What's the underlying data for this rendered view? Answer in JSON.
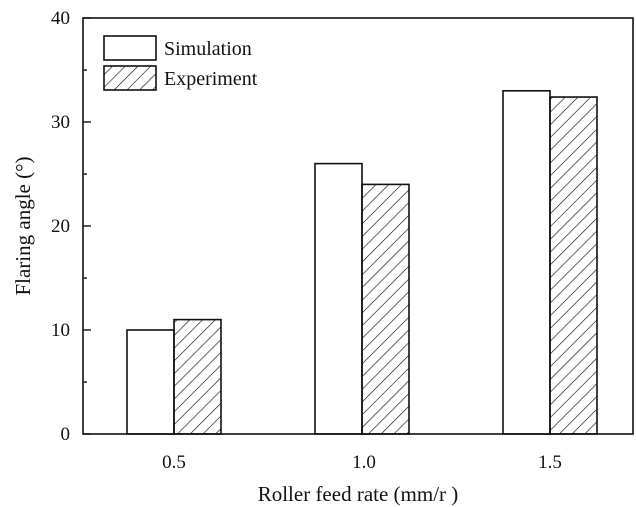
{
  "chart_data": {
    "type": "bar",
    "categories": [
      "0.5",
      "1.0",
      "1.5"
    ],
    "series": [
      {
        "name": "Simulation",
        "values": [
          10,
          26,
          33
        ],
        "pattern": "none"
      },
      {
        "name": "Experiment",
        "values": [
          11,
          24,
          32.4
        ],
        "pattern": "diagonal-hatch"
      }
    ],
    "xlabel": "Roller feed rate (mm/r )",
    "ylabel": "Flaring angle (°)",
    "ylim": [
      0,
      40
    ],
    "yticks": [
      "0",
      "10",
      "20",
      "30",
      "40"
    ],
    "legend_position": "top-left",
    "grid": false,
    "colors": {
      "bar_stroke": "#111111",
      "bar_fill": "#ffffff",
      "axis": "#111111"
    }
  }
}
